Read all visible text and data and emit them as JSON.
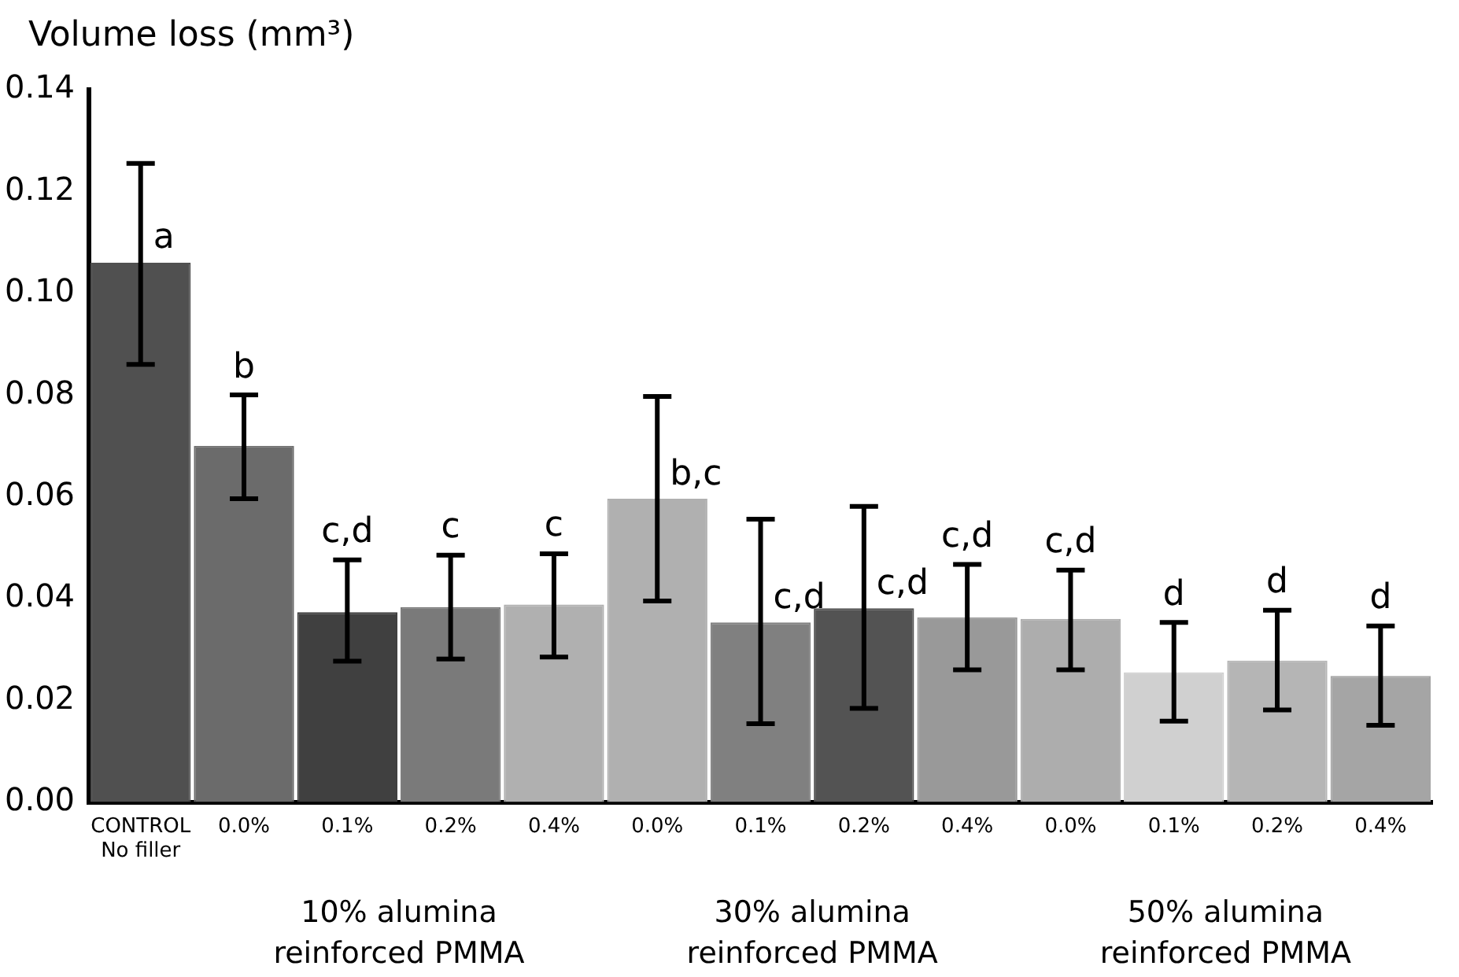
{
  "chart_data": {
    "type": "bar",
    "ylabel": "Volume loss (mm³)",
    "categories": [
      "CONTROL\nNo filler",
      "0.0%",
      "0.1%",
      "0.2%",
      "0.4%",
      "0.0%",
      "0.1%",
      "0.2%",
      "0.4%",
      "0.0%",
      "0.1%",
      "0.2%",
      "0.4%"
    ],
    "values": [
      0.106,
      0.07,
      0.0373,
      0.0383,
      0.0388,
      0.0596,
      0.0353,
      0.0381,
      0.0363,
      0.036,
      0.0255,
      0.0278,
      0.0248
    ],
    "errors": [
      [
        0.086,
        0.1255
      ],
      [
        0.0596,
        0.08
      ],
      [
        0.0277,
        0.0476
      ],
      [
        0.0281,
        0.0485
      ],
      [
        0.0285,
        0.0488
      ],
      [
        0.0395,
        0.0797
      ],
      [
        0.0154,
        0.0556
      ],
      [
        0.0184,
        0.0581
      ],
      [
        0.026,
        0.0467
      ],
      [
        0.026,
        0.0456
      ],
      [
        0.0159,
        0.0353
      ],
      [
        0.0181,
        0.0377
      ],
      [
        0.0151,
        0.0346
      ]
    ],
    "value_labels": [
      "a",
      "b",
      "c,d",
      "c",
      "c",
      "b,c",
      "c,d",
      "c,d",
      "c,d",
      "c,d",
      "d",
      "d",
      "d"
    ],
    "colors": [
      "#505050",
      "#6b6b6b",
      "#404040",
      "#7a7a7a",
      "#b0b0b0",
      "#b0b0b0",
      "#808080",
      "#535353",
      "#999999",
      "#adadad",
      "#d0d0d0",
      "#b5b5b5",
      "#a5a5a5"
    ],
    "ylim": [
      0,
      0.14
    ],
    "yticks": [
      {
        "value": 0,
        "label": "0.00"
      },
      {
        "value": 0.02,
        "label": "0.02"
      },
      {
        "value": 0.04,
        "label": "0.04"
      },
      {
        "value": 0.06,
        "label": "0.06"
      },
      {
        "value": 0.08,
        "label": "0.08"
      },
      {
        "value": 0.1,
        "label": "0.10"
      },
      {
        "value": 0.12,
        "label": "0.12"
      },
      {
        "value": 0.14,
        "label": "0.14"
      }
    ],
    "annotations": [
      "10% alumina\nreinforced PMMA",
      "30% alumina\nreinforced PMMA",
      "50% alumina\nreinforced PMMA"
    ],
    "grid": false,
    "legend": false
  }
}
